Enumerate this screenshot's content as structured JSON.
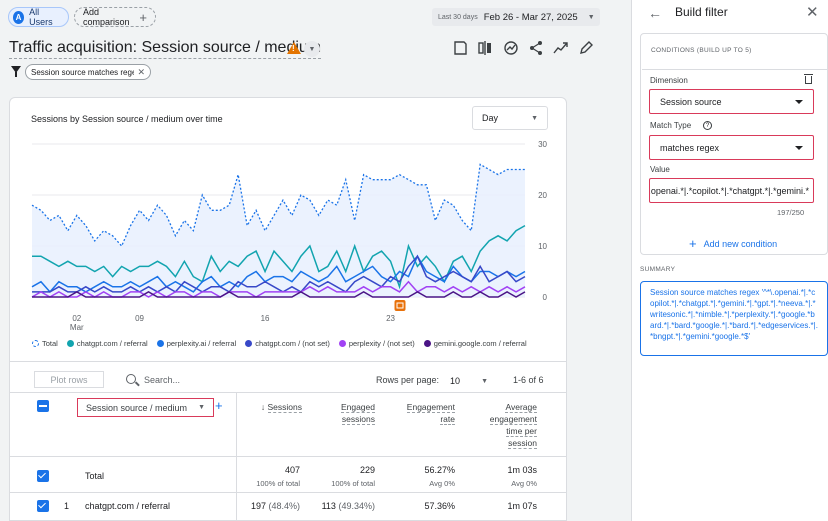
{
  "header": {
    "segment_chip": "All Users",
    "segment_avatar": "A",
    "add_comparison": "Add comparison",
    "date_label": "Last 30 days",
    "date_range": "Feb 26 - Mar 27, 2025"
  },
  "report": {
    "title": "Traffic acquisition: Session source / medium",
    "filter_chip": "Session source matches regex"
  },
  "chart_data": {
    "type": "line",
    "title": "Sessions by Session source / medium over time",
    "granularity": "Day",
    "x_ticks": [
      "02",
      "Mar",
      "09",
      "16",
      "23"
    ],
    "y_ticks": [
      0,
      10,
      20,
      30
    ],
    "ylim": [
      0,
      30
    ],
    "annotation_icon_color": "#e8710a",
    "series": [
      {
        "name": "Total",
        "color": "#1a73e8",
        "dashed": true,
        "values": [
          18,
          17,
          15,
          16,
          13,
          16,
          14,
          11,
          13,
          12,
          10,
          14,
          17,
          15,
          18,
          16,
          12,
          15,
          13,
          20,
          17,
          17,
          18,
          24,
          14,
          17,
          13,
          16,
          19,
          16,
          20,
          19,
          16,
          19,
          18,
          23,
          15,
          24,
          23,
          23,
          23,
          24,
          23,
          22,
          22,
          15,
          19,
          18,
          15,
          13,
          26,
          25,
          24,
          25,
          25,
          25
        ]
      },
      {
        "name": "chatgpt.com / referral",
        "color": "#12a4af",
        "dashed": false,
        "values": [
          8,
          8,
          7,
          6,
          7,
          6,
          6,
          5,
          6,
          4,
          6,
          5,
          6,
          6,
          7,
          6,
          4,
          7,
          4,
          3,
          8,
          5,
          7,
          6,
          8,
          9,
          5,
          9,
          7,
          5,
          8,
          10,
          5,
          6,
          9,
          5,
          10,
          5,
          8,
          9,
          7,
          2,
          10,
          6,
          8,
          6,
          3,
          7,
          8,
          5,
          9,
          11,
          12,
          11,
          13,
          14
        ]
      },
      {
        "name": "perplexity.ai / referral",
        "color": "#1a73e8",
        "dashed": false,
        "values": [
          2,
          3,
          1,
          3,
          2,
          2,
          1,
          2,
          3,
          2,
          2,
          3,
          2,
          3,
          4,
          2,
          3,
          2,
          1,
          3,
          4,
          2,
          3,
          2,
          4,
          5,
          3,
          4,
          4,
          3,
          5,
          4,
          3,
          4,
          6,
          3,
          4,
          5,
          6,
          4,
          3,
          5,
          4,
          8,
          5,
          4,
          3,
          6,
          4,
          3,
          5,
          5,
          4,
          5,
          4,
          5
        ]
      },
      {
        "name": "chatgpt.com / (not set)",
        "color": "#3848c8",
        "dashed": false,
        "values": [
          1,
          1,
          1,
          2,
          1,
          1,
          2,
          1,
          2,
          1,
          1,
          2,
          1,
          2,
          1,
          2,
          1,
          3,
          2,
          1,
          2,
          2,
          1,
          3,
          2,
          2,
          3,
          2,
          1,
          2,
          1,
          3,
          2,
          3,
          2,
          1,
          3,
          4,
          3,
          2,
          4,
          3,
          6,
          8,
          4,
          3,
          4,
          5,
          4,
          3,
          6,
          3,
          4,
          5,
          3,
          4
        ]
      },
      {
        "name": "perplexity / (not set)",
        "color": "#a142f4",
        "dashed": false,
        "values": [
          0,
          1,
          0,
          1,
          0,
          0,
          1,
          0,
          1,
          0,
          0,
          1,
          1,
          0,
          1,
          0,
          1,
          1,
          0,
          1,
          1,
          0,
          1,
          1,
          1,
          0,
          1,
          1,
          1,
          1,
          1,
          2,
          1,
          2,
          1,
          1,
          1,
          2,
          1,
          2,
          2,
          1,
          3,
          1,
          2,
          2,
          1,
          2,
          1,
          2,
          1,
          2,
          1,
          2,
          1,
          2
        ]
      },
      {
        "name": "gemini.google.com / referral",
        "color": "#4a1486",
        "dashed": false,
        "values": [
          0,
          0,
          0,
          0,
          0,
          1,
          0,
          0,
          0,
          0,
          0,
          0,
          0,
          1,
          0,
          0,
          0,
          0,
          0,
          0,
          0,
          0,
          1,
          0,
          0,
          0,
          0,
          0,
          0,
          0,
          1,
          0,
          0,
          0,
          0,
          0,
          0,
          1,
          0,
          0,
          0,
          0,
          0,
          1,
          0,
          0,
          0,
          1,
          0,
          0,
          1,
          0,
          0,
          1,
          0,
          1
        ]
      }
    ]
  },
  "table": {
    "plot_rows": "Plot rows",
    "search_placeholder": "Search...",
    "rows_per_page_label": "Rows per page:",
    "rows_per_page": "10",
    "page_info": "1-6 of 6",
    "dimension": "Session source / medium",
    "columns": {
      "sessions": "Sessions",
      "engaged_1": "Engaged",
      "engaged_2": "sessions",
      "rate_1": "Engagement",
      "rate_2": "rate",
      "avg_1": "Average",
      "avg_2": "engagement",
      "avg_3": "time per",
      "avg_4": "session"
    },
    "total": {
      "label": "Total",
      "sessions": "407",
      "sessions_sub": "100% of total",
      "engaged": "229",
      "engaged_sub": "100% of total",
      "rate": "56.27%",
      "rate_sub": "Avg 0%",
      "avg": "1m 03s",
      "avg_sub": "Avg 0%"
    },
    "rows": [
      {
        "index": "1",
        "name": "chatgpt.com / referral",
        "sessions": "197",
        "sessions_pct": "(48.4%)",
        "engaged": "113",
        "engaged_pct": "(49.34%)",
        "rate": "57.36%",
        "avg": "1m 07s"
      }
    ]
  },
  "panel": {
    "title": "Build filter",
    "conditions_header": "CONDITIONS (BUILD UP TO 5)",
    "dimension_label": "Dimension",
    "dimension_value": "Session source",
    "match_type_label": "Match Type",
    "match_type_value": "matches regex",
    "value_label": "Value",
    "value_input": "^*\\.openai.*|.*copilot.*|.*chatgpt.*|.*gemini.*",
    "char_counter": "197/250",
    "add_condition": "Add new condition",
    "summary_label": "SUMMARY",
    "summary_text": "Session source matches regex '^*\\.openai.*|.*copilot.*|.*chatgpt.*|.*gemini.*|.*gpt.*|.*neeva.*|.*writesonic.*|.*nimble.*|.*perplexity.*|.*google.*bard.*|.*bard.*google.*|.*bard.*|.*edgeservices.*|.*bngpt.*|.*gemini.*google.*$'"
  },
  "colors": {
    "accent": "#1a73e8",
    "highlight_border": "#d93a5a",
    "warning": "#e37400"
  }
}
